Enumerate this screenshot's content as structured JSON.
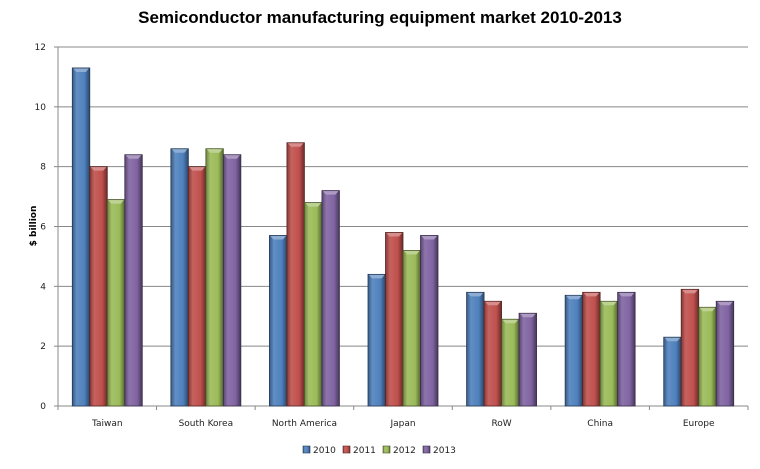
{
  "chart_data": {
    "type": "bar",
    "title": "Semiconductor manufacturing equipment market 2010-2013",
    "xlabel": "",
    "ylabel": "$ billion",
    "ylim": [
      0,
      12
    ],
    "yticks": [
      0,
      2,
      4,
      6,
      8,
      10,
      12
    ],
    "grid": true,
    "legend": "bottom",
    "categories": [
      "Taiwan",
      "South Korea",
      "North America",
      "Japan",
      "RoW",
      "China",
      "Europe"
    ],
    "series": [
      {
        "name": "2010",
        "color": "#4f81bd",
        "values": [
          11.3,
          8.6,
          5.7,
          4.4,
          3.8,
          3.7,
          2.3
        ]
      },
      {
        "name": "2011",
        "color": "#c0504d",
        "values": [
          8.0,
          8.0,
          8.8,
          5.8,
          3.5,
          3.8,
          3.9
        ]
      },
      {
        "name": "2012",
        "color": "#9bbb59",
        "values": [
          6.9,
          8.6,
          6.8,
          5.2,
          2.9,
          3.5,
          3.3
        ]
      },
      {
        "name": "2013",
        "color": "#8064a2",
        "values": [
          8.4,
          8.4,
          7.2,
          5.7,
          3.1,
          3.8,
          3.5
        ]
      }
    ]
  }
}
